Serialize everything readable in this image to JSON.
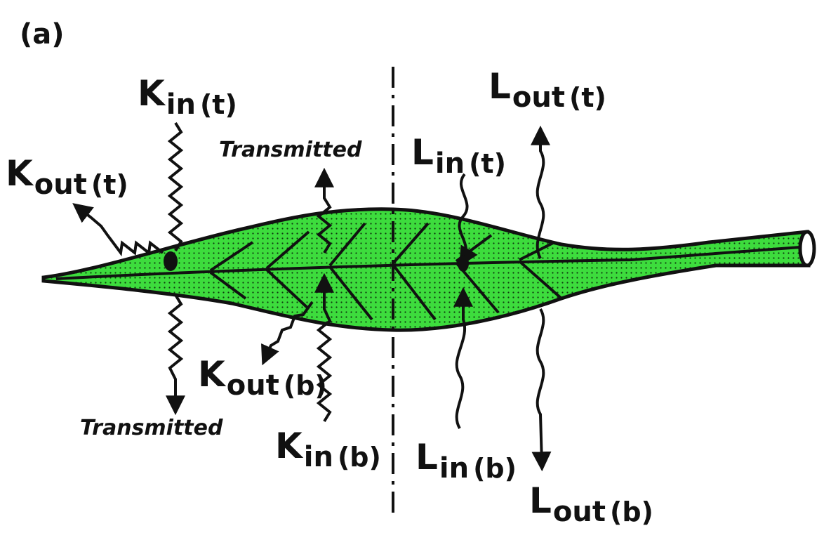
{
  "panel_label": "(a)",
  "labels": {
    "k_in_t": {
      "main": "K",
      "sub": "in",
      "paren": "(t)"
    },
    "k_out_t": {
      "main": "K",
      "sub": "out",
      "paren": "(t)"
    },
    "k_out_b": {
      "main": "K",
      "sub": "out",
      "paren": "(b)"
    },
    "k_in_b": {
      "main": "K",
      "sub": "in",
      "paren": "(b)"
    },
    "l_in_t": {
      "main": "L",
      "sub": "in",
      "paren": "(t)"
    },
    "l_out_t": {
      "main": "L",
      "sub": "out",
      "paren": "(t)"
    },
    "l_in_b": {
      "main": "L",
      "sub": "in",
      "paren": "(b)"
    },
    "l_out_b": {
      "main": "L",
      "sub": "out",
      "paren": "(b)"
    }
  },
  "transmitted_top": "Transmitted",
  "transmitted_bottom": "Transmitted",
  "colors": {
    "leaf": "#3ddc3d",
    "ink": "#111111"
  }
}
